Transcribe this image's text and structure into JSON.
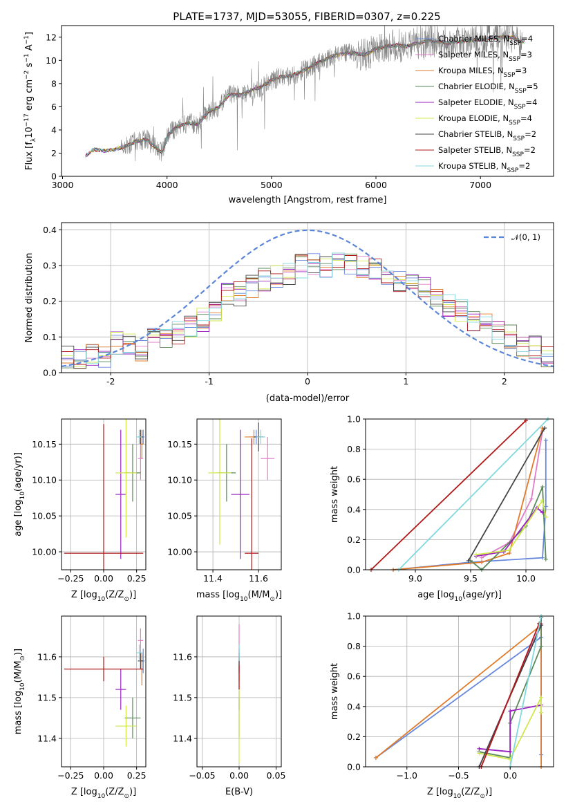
{
  "figure": {
    "title": "PLATE=1737, MJD=53055, FIBERID=0307, z=0.225"
  },
  "series_styles": [
    {
      "name": "Chabrier MILES",
      "nssp": "4",
      "color": "#6688dd"
    },
    {
      "name": "Salpeter MILES",
      "nssp": "3",
      "color": "#e07bc8"
    },
    {
      "name": "Kroupa MILES",
      "nssp": "3",
      "color": "#e07b2a"
    },
    {
      "name": "Chabrier ELODIE",
      "nssp": "5",
      "color": "#5a8a5a"
    },
    {
      "name": "Salpeter ELODIE",
      "nssp": "4",
      "color": "#9a20c0"
    },
    {
      "name": "Kroupa ELODIE",
      "nssp": "4",
      "color": "#cfe84a"
    },
    {
      "name": "Chabrier STELIB",
      "nssp": "2",
      "color": "#444444"
    },
    {
      "name": "Salpeter STELIB",
      "nssp": "2",
      "color": "#b01818"
    },
    {
      "name": "Kroupa STELIB",
      "nssp": "2",
      "color": "#80d8e0"
    }
  ],
  "chart_data": [
    {
      "id": "spectrum",
      "type": "line",
      "xlabel": "wavelength [Angstrom, rest frame]",
      "ylabel": "Flux [f",
      "xlim": [
        2990,
        7700
      ],
      "ylim": [
        0,
        13
      ],
      "xticks": [
        3000,
        4000,
        5000,
        6000,
        7000
      ],
      "yticks": [
        0,
        2,
        4,
        6,
        8,
        10,
        12
      ],
      "grid": false,
      "legend_position": "right",
      "data_color": "#777777",
      "continuum": [
        [
          3220,
          1.8
        ],
        [
          3300,
          2.3
        ],
        [
          3400,
          2.2
        ],
        [
          3500,
          2.3
        ],
        [
          3600,
          2.6
        ],
        [
          3700,
          3.0
        ],
        [
          3800,
          3.2
        ],
        [
          3900,
          2.4
        ],
        [
          3950,
          2.0
        ],
        [
          4000,
          3.5
        ],
        [
          4100,
          4.3
        ],
        [
          4200,
          4.6
        ],
        [
          4300,
          4.5
        ],
        [
          4400,
          5.6
        ],
        [
          4500,
          6.0
        ],
        [
          4600,
          7.1
        ],
        [
          4700,
          7.0
        ],
        [
          4800,
          7.4
        ],
        [
          4900,
          7.7
        ],
        [
          5000,
          8.3
        ],
        [
          5100,
          8.6
        ],
        [
          5200,
          8.7
        ],
        [
          5300,
          9.1
        ],
        [
          5400,
          9.6
        ],
        [
          5500,
          10.0
        ],
        [
          5600,
          10.4
        ],
        [
          5700,
          10.6
        ],
        [
          5800,
          10.6
        ],
        [
          5900,
          10.5
        ],
        [
          6000,
          11.0
        ],
        [
          6100,
          11.2
        ],
        [
          6200,
          11.3
        ],
        [
          6300,
          11.2
        ],
        [
          6400,
          11.5
        ],
        [
          6500,
          11.7
        ],
        [
          6600,
          11.6
        ],
        [
          6700,
          11.5
        ],
        [
          6800,
          11.6
        ],
        [
          6900,
          11.7
        ],
        [
          7000,
          11.8
        ],
        [
          7100,
          11.9
        ],
        [
          7200,
          12.0
        ],
        [
          7300,
          12.0
        ],
        [
          7400,
          11.6
        ]
      ]
    },
    {
      "id": "residuals",
      "type": "histogram",
      "xlabel": "(data-model)/error",
      "ylabel": "Normed distribution",
      "xlim": [
        -2.5,
        2.5
      ],
      "ylim": [
        0,
        0.42
      ],
      "xticks": [
        -2,
        -1,
        0,
        1,
        2
      ],
      "yticks": [
        0.0,
        0.1,
        0.2,
        0.3,
        0.4
      ],
      "grid": true,
      "reference_curve": {
        "label": "N(0,1)",
        "mu": 0,
        "sigma": 1,
        "color": "#5b86d8"
      },
      "legend_position": "top-right",
      "bins": 40,
      "heights": [
        0.04,
        0.03,
        0.05,
        0.05,
        0.08,
        0.08,
        0.06,
        0.1,
        0.1,
        0.11,
        0.13,
        0.15,
        0.17,
        0.22,
        0.22,
        0.24,
        0.26,
        0.27,
        0.28,
        0.3,
        0.31,
        0.3,
        0.32,
        0.3,
        0.3,
        0.29,
        0.28,
        0.26,
        0.26,
        0.24,
        0.21,
        0.19,
        0.17,
        0.15,
        0.13,
        0.11,
        0.1,
        0.08,
        0.07,
        0.05
      ]
    },
    {
      "id": "age-vs-Z",
      "type": "scatter",
      "xlabel": "Z [log",
      "ylabel": "age  [log",
      "xlim": [
        -0.32,
        0.32
      ],
      "ylim": [
        9.975,
        10.185
      ],
      "xticks": [
        -0.25,
        0.0,
        0.25
      ],
      "yticks": [
        10.0,
        10.05,
        10.1,
        10.15
      ],
      "grid": true,
      "points": [
        {
          "s": 0,
          "x": 0.3,
          "y": 10.16,
          "ex": 0.01,
          "ey": 0.01
        },
        {
          "s": 1,
          "x": 0.28,
          "y": 10.13,
          "ex": 0.02,
          "ey": 0.03
        },
        {
          "s": 2,
          "x": 0.29,
          "y": 10.15,
          "ex": 0.01,
          "ey": 0.02
        },
        {
          "s": 3,
          "x": 0.22,
          "y": 10.11,
          "ex": 0.06,
          "ey": 0.04
        },
        {
          "s": 4,
          "x": 0.13,
          "y": 10.08,
          "ex": 0.04,
          "ey": 0.09
        },
        {
          "s": 5,
          "x": 0.17,
          "y": 10.11,
          "ex": 0.08,
          "ey": 0.09
        },
        {
          "s": 6,
          "x": 0.28,
          "y": 10.16,
          "ex": 0.02,
          "ey": 0.01
        },
        {
          "s": 7,
          "x": 0.0,
          "y": 9.998,
          "ex": 0.3,
          "ey": 0.18
        },
        {
          "s": 8,
          "x": 0.27,
          "y": 10.16,
          "ex": 0.02,
          "ey": 0.01
        }
      ]
    },
    {
      "id": "age-vs-mass",
      "type": "scatter",
      "xlabel": "mass [log",
      "ylabel": "",
      "xlim": [
        11.33,
        11.7
      ],
      "ylim": [
        9.975,
        10.185
      ],
      "xticks": [
        11.4,
        11.6
      ],
      "yticks": [
        10.0,
        10.05,
        10.1,
        10.15
      ],
      "grid": true,
      "points": [
        {
          "s": 0,
          "x": 11.59,
          "y": 10.16,
          "ex": 0.03,
          "ey": 0.01
        },
        {
          "s": 1,
          "x": 11.64,
          "y": 10.13,
          "ex": 0.03,
          "ey": 0.03
        },
        {
          "s": 2,
          "x": 11.58,
          "y": 10.16,
          "ex": 0.04,
          "ey": 0.01
        },
        {
          "s": 3,
          "x": 11.46,
          "y": 10.11,
          "ex": 0.04,
          "ey": 0.04
        },
        {
          "s": 4,
          "x": 11.52,
          "y": 10.08,
          "ex": 0.04,
          "ey": 0.09
        },
        {
          "s": 5,
          "x": 11.43,
          "y": 10.11,
          "ex": 0.05,
          "ey": 0.1
        },
        {
          "s": 6,
          "x": 11.6,
          "y": 10.16,
          "ex": 0.02,
          "ey": 0.02
        },
        {
          "s": 7,
          "x": 11.57,
          "y": 9.998,
          "ex": 0.03,
          "ey": 0.16
        },
        {
          "s": 8,
          "x": 11.61,
          "y": 10.16,
          "ex": 0.02,
          "ey": 0.01
        }
      ]
    },
    {
      "id": "weight-vs-age",
      "type": "line",
      "xlabel": "age  [log",
      "ylabel": "mass weight",
      "xlim": [
        8.55,
        10.25
      ],
      "ylim": [
        0,
        1
      ],
      "xticks": [
        9.0,
        9.5,
        10.0
      ],
      "yticks": [
        0.0,
        0.2,
        0.4,
        0.6,
        0.8,
        1.0
      ],
      "grid": true,
      "series": [
        {
          "s": 0,
          "x": [
            8.8,
            9.5,
            10.15,
            10.18,
            10.18
          ],
          "y": [
            0.0,
            0.05,
            0.08,
            0.42,
            0.86
          ]
        },
        {
          "s": 1,
          "x": [
            9.6,
            9.85,
            10.05,
            10.15
          ],
          "y": [
            0.08,
            0.18,
            0.47,
            0.92
          ]
        },
        {
          "s": 2,
          "x": [
            8.8,
            9.6,
            9.85,
            10.15
          ],
          "y": [
            0.0,
            0.05,
            0.11,
            0.94
          ]
        },
        {
          "s": 3,
          "x": [
            9.5,
            9.6,
            10.0,
            10.15,
            10.18
          ],
          "y": [
            0.06,
            0.0,
            0.29,
            0.55,
            0.07
          ]
        },
        {
          "s": 4,
          "x": [
            9.55,
            9.8,
            10.1,
            10.15
          ],
          "y": [
            0.09,
            0.12,
            0.41,
            0.38
          ]
        },
        {
          "s": 5,
          "x": [
            9.55,
            9.85,
            10.15,
            10.18
          ],
          "y": [
            0.1,
            0.13,
            0.46,
            0.35
          ]
        },
        {
          "s": 6,
          "x": [
            9.48,
            10.17
          ],
          "y": [
            0.06,
            0.94
          ]
        },
        {
          "s": 7,
          "x": [
            8.6,
            10.0
          ],
          "y": [
            0.0,
            0.99
          ]
        },
        {
          "s": 8,
          "x": [
            8.85,
            10.2
          ],
          "y": [
            0.0,
            1.0
          ]
        }
      ]
    },
    {
      "id": "mass-vs-Z",
      "type": "scatter",
      "xlabel": "Z [log",
      "ylabel": "mass [log",
      "xlim": [
        -0.32,
        0.32
      ],
      "ylim": [
        11.33,
        11.7
      ],
      "xticks": [
        -0.25,
        0.0,
        0.25
      ],
      "yticks": [
        11.4,
        11.5,
        11.6
      ],
      "grid": true,
      "points": [
        {
          "s": 0,
          "x": 0.3,
          "y": 11.59,
          "ex": 0.01,
          "ey": 0.03
        },
        {
          "s": 1,
          "x": 0.28,
          "y": 11.64,
          "ex": 0.02,
          "ey": 0.03
        },
        {
          "s": 2,
          "x": 0.29,
          "y": 11.57,
          "ex": 0.01,
          "ey": 0.04
        },
        {
          "s": 3,
          "x": 0.22,
          "y": 11.45,
          "ex": 0.06,
          "ey": 0.05
        },
        {
          "s": 4,
          "x": 0.13,
          "y": 11.52,
          "ex": 0.04,
          "ey": 0.05
        },
        {
          "s": 5,
          "x": 0.17,
          "y": 11.43,
          "ex": 0.08,
          "ey": 0.05
        },
        {
          "s": 6,
          "x": 0.28,
          "y": 11.59,
          "ex": 0.02,
          "ey": 0.02
        },
        {
          "s": 7,
          "x": 0.0,
          "y": 11.57,
          "ex": 0.3,
          "ey": 0.03
        },
        {
          "s": 8,
          "x": 0.27,
          "y": 11.61,
          "ex": 0.02,
          "ey": 0.02
        }
      ]
    },
    {
      "id": "mass-vs-EBV",
      "type": "scatter",
      "xlabel": "E(B-V)",
      "ylabel": "",
      "xlim": [
        -0.057,
        0.057
      ],
      "ylim": [
        11.33,
        11.7
      ],
      "xticks": [
        -0.05,
        0.0,
        0.05
      ],
      "yticks": [
        11.4,
        11.5,
        11.6
      ],
      "grid": true,
      "points": [
        {
          "s": 0,
          "x": 0.0,
          "y": 11.59,
          "ex": 0.0,
          "ey": 0.03
        },
        {
          "s": 1,
          "x": 0.0,
          "y": 11.62,
          "ex": 0.0,
          "ey": 0.06
        },
        {
          "s": 2,
          "x": 0.0,
          "y": 11.57,
          "ex": 0.0,
          "ey": 0.03
        },
        {
          "s": 3,
          "x": 0.0,
          "y": 11.45,
          "ex": 0.0,
          "ey": 0.05
        },
        {
          "s": 4,
          "x": 0.0,
          "y": 11.52,
          "ex": 0.0,
          "ey": 0.05
        },
        {
          "s": 5,
          "x": 0.0,
          "y": 11.45,
          "ex": 0.0,
          "ey": 0.11
        },
        {
          "s": 6,
          "x": 0.0,
          "y": 11.59,
          "ex": 0.0,
          "ey": 0.02
        },
        {
          "s": 7,
          "x": 0.0,
          "y": 11.55,
          "ex": 0.0,
          "ey": 0.03
        },
        {
          "s": 8,
          "x": 0.0,
          "y": 11.61,
          "ex": 0.0,
          "ey": 0.02
        }
      ]
    },
    {
      "id": "weight-vs-Z",
      "type": "line",
      "xlabel": "Z [log",
      "ylabel": "mass weight",
      "xlim": [
        -1.4,
        0.42
      ],
      "ylim": [
        0,
        1
      ],
      "xticks": [
        -1.0,
        -0.5,
        0.0
      ],
      "yticks": [
        0.0,
        0.2,
        0.4,
        0.6,
        0.8,
        1.0
      ],
      "grid": true,
      "series": [
        {
          "s": 0,
          "x": [
            -1.3,
            0.3,
            0.3
          ],
          "y": [
            0.06,
            0.86,
            0.08
          ]
        },
        {
          "s": 1,
          "x": [
            -0.3,
            0.3
          ],
          "y": [
            0.0,
            0.95
          ]
        },
        {
          "s": 2,
          "x": [
            -1.3,
            0.3,
            0.3
          ],
          "y": [
            0.06,
            0.94,
            0.0
          ]
        },
        {
          "s": 3,
          "x": [
            -0.3,
            0.0,
            0.0,
            0.3,
            0.3
          ],
          "y": [
            0.1,
            0.06,
            0.29,
            0.8,
            0.99
          ]
        },
        {
          "s": 4,
          "x": [
            -0.3,
            0.0,
            0.0,
            0.3
          ],
          "y": [
            0.12,
            0.1,
            0.37,
            0.41
          ]
        },
        {
          "s": 5,
          "x": [
            -0.3,
            0.0,
            0.3,
            0.3
          ],
          "y": [
            0.09,
            0.05,
            0.46,
            0.36
          ]
        },
        {
          "s": 6,
          "x": [
            -0.3,
            0.3
          ],
          "y": [
            0.0,
            0.94
          ]
        },
        {
          "s": 7,
          "x": [
            -0.28,
            0.28
          ],
          "y": [
            0.0,
            0.95
          ]
        },
        {
          "s": 8,
          "x": [
            0.0,
            0.3
          ],
          "y": [
            0.0,
            1.0
          ]
        }
      ]
    }
  ]
}
